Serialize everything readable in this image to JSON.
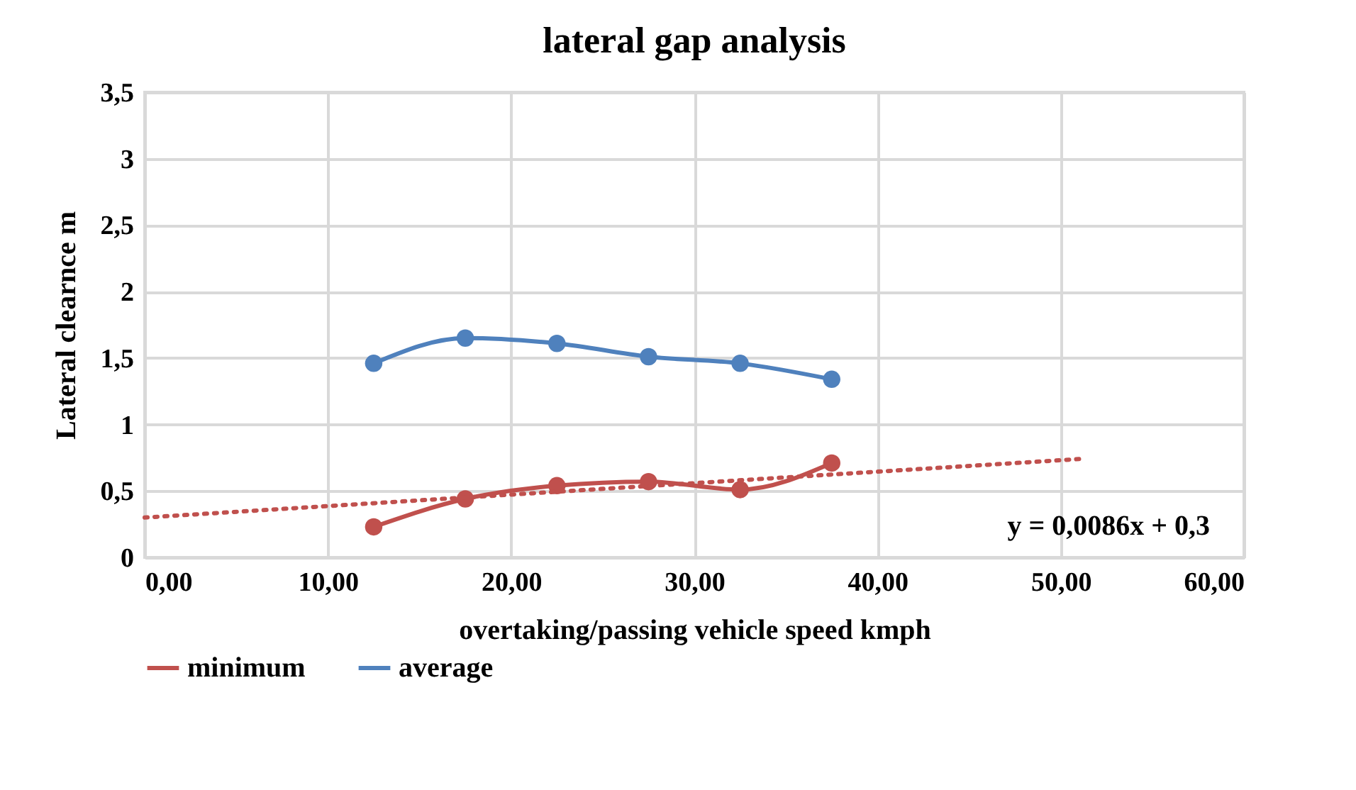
{
  "chart_data": {
    "type": "line",
    "title": "lateral gap analysis",
    "xlabel": "overtaking/passing vehicle speed kmph",
    "ylabel": "Lateral clearnce m",
    "x": [
      12.5,
      17.5,
      22.5,
      27.5,
      32.5,
      37.5
    ],
    "series": [
      {
        "name": "minimum",
        "color": "#c0504d",
        "values": [
          0.23,
          0.44,
          0.54,
          0.57,
          0.51,
          0.71
        ]
      },
      {
        "name": "average",
        "color": "#4f81bd",
        "values": [
          1.46,
          1.65,
          1.61,
          1.51,
          1.46,
          1.34
        ]
      },
      {
        "type": "line",
        "color": "#c0504d",
        "x": [
          0,
          51
        ],
        "values": [
          0.3,
          0.74
        ],
        "line_style": "dotted",
        "marker": "none"
      }
    ],
    "xlim": [
      0,
      60
    ],
    "ylim": [
      0,
      3.5
    ],
    "xticks": [
      {
        "value": 0,
        "label": "0,00"
      },
      {
        "value": 10,
        "label": "10,00"
      },
      {
        "value": 20,
        "label": "20,00"
      },
      {
        "value": 30,
        "label": "30,00"
      },
      {
        "value": 40,
        "label": "40,00"
      },
      {
        "value": 50,
        "label": "50,00"
      },
      {
        "value": 60,
        "label": "60,00"
      }
    ],
    "yticks": [
      0,
      {
        "value": 0.5,
        "label": "0,5"
      },
      1,
      {
        "value": 1.5,
        "label": "1,5"
      },
      2,
      {
        "value": 2.5,
        "label": "2,5"
      },
      3,
      {
        "value": 3.5,
        "label": "3,5"
      }
    ],
    "annotations": [
      "y = 0,0086x + 0,3"
    ],
    "grid": true,
    "legend": "bottom",
    "marker": "circle",
    "line_style": "solid"
  }
}
